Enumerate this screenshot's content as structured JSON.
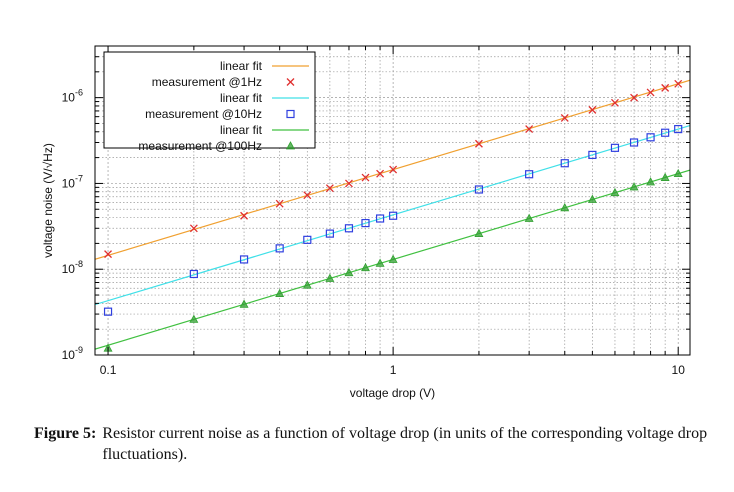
{
  "chart_data": {
    "type": "scatter",
    "title": "",
    "xlabel": "voltage drop (V)",
    "ylabel": "voltage noise (V/√Hz)",
    "xscale": "log",
    "yscale": "log",
    "xlim": [
      0.09,
      11
    ],
    "ylim": [
      1e-09,
      4e-06
    ],
    "x_ticks": [
      {
        "value": 0.1,
        "label": "0.1"
      },
      {
        "value": 1,
        "label": "1"
      },
      {
        "value": 10,
        "label": "10"
      }
    ],
    "y_ticks": [
      {
        "value": 1e-09,
        "base": "10",
        "exp": "-9"
      },
      {
        "value": 1e-08,
        "base": "10",
        "exp": "-8"
      },
      {
        "value": 1e-07,
        "base": "10",
        "exp": "-7"
      },
      {
        "value": 1e-06,
        "base": "10",
        "exp": "-6"
      }
    ],
    "grid": true,
    "legend_position": "top-left",
    "x": [
      0.1,
      0.2,
      0.3,
      0.4,
      0.5,
      0.6,
      0.7,
      0.8,
      0.9,
      1,
      2,
      3,
      4,
      5,
      6,
      7,
      8,
      9,
      10
    ],
    "fits": [
      {
        "name": "linear fit",
        "color": "#f0a030",
        "coef": 1.45e-07
      },
      {
        "name": "linear fit",
        "color": "#40e0e8",
        "coef": 4.3e-08
      },
      {
        "name": "linear fit",
        "color": "#40c040",
        "coef": 1.3e-08
      }
    ],
    "series": [
      {
        "name": "measurement  @1Hz",
        "marker": "x",
        "color": "#e03030",
        "values": [
          1.5e-08,
          3e-08,
          4.2e-08,
          5.8e-08,
          7.3e-08,
          8.8e-08,
          1e-07,
          1.17e-07,
          1.3e-07,
          1.45e-07,
          2.9e-07,
          4.3e-07,
          5.8e-07,
          7.2e-07,
          8.7e-07,
          1e-06,
          1.15e-06,
          1.3e-06,
          1.45e-06
        ]
      },
      {
        "name": "measurement @10Hz",
        "marker": "square",
        "color": "#3040e0",
        "values": [
          3.2e-09,
          8.8e-09,
          1.3e-08,
          1.75e-08,
          2.2e-08,
          2.6e-08,
          3e-08,
          3.45e-08,
          3.9e-08,
          4.2e-08,
          8.5e-08,
          1.28e-07,
          1.72e-07,
          2.15e-07,
          2.6e-07,
          3e-07,
          3.45e-07,
          3.9e-07,
          4.3e-07
        ]
      },
      {
        "name": "measurement @100Hz",
        "marker": "triangle",
        "color": "#30a030",
        "values": [
          1.2e-09,
          2.6e-09,
          3.9e-09,
          5.2e-09,
          6.5e-09,
          7.8e-09,
          9.1e-09,
          1.04e-08,
          1.17e-08,
          1.3e-08,
          2.6e-08,
          3.9e-08,
          5.2e-08,
          6.5e-08,
          7.8e-08,
          9.1e-08,
          1.04e-07,
          1.17e-07,
          1.3e-07
        ]
      }
    ]
  },
  "caption": {
    "label": "Figure 5:",
    "text": "Resistor current noise as a function of voltage drop (in units of the corresponding voltage drop fluctuations)."
  }
}
